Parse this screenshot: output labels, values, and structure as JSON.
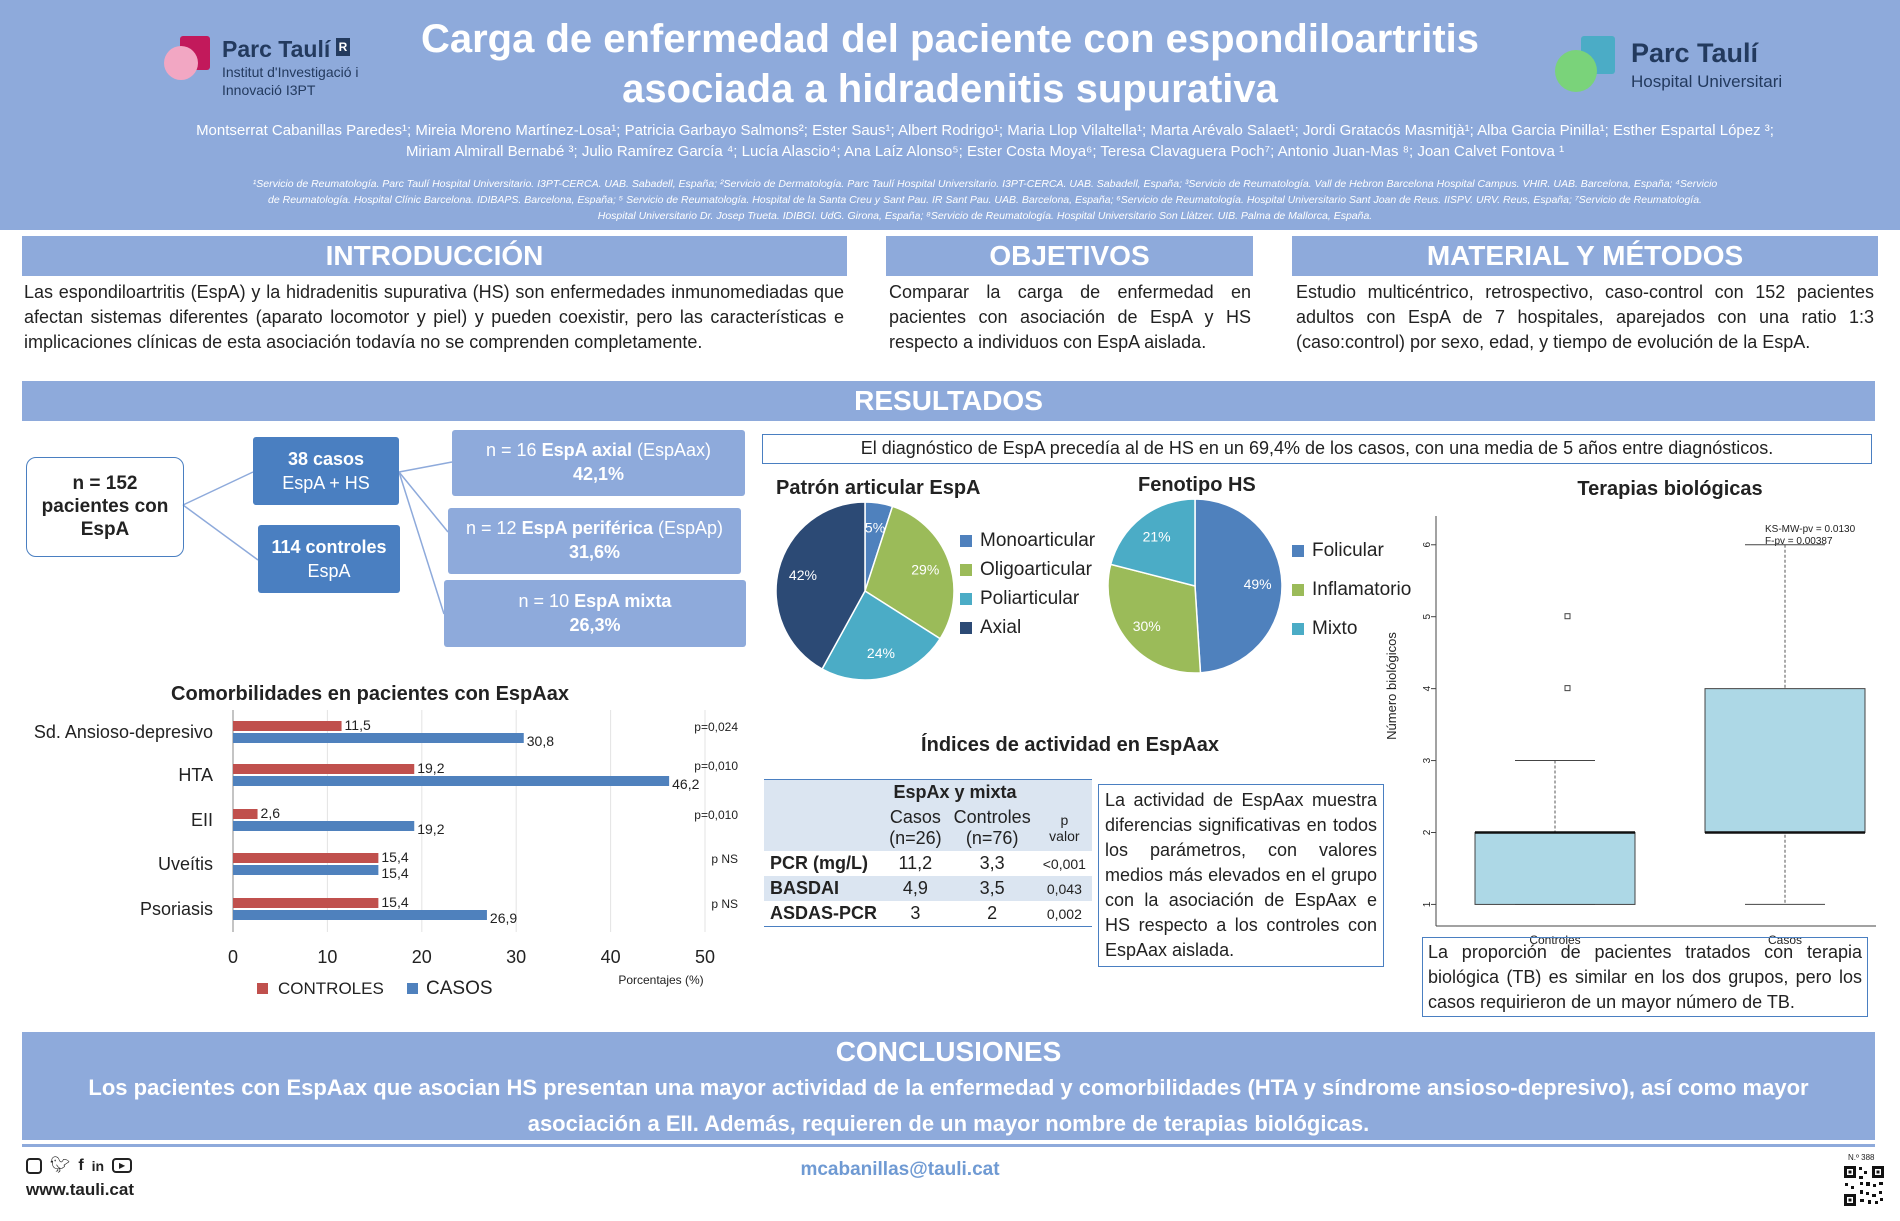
{
  "header": {
    "title_line1": "Carga de enfermedad del paciente con espondiloartritis",
    "title_line2": "asociada a hidradenitis supurativa",
    "authors_line1": "Montserrat Cabanillas Paredes¹; Mireia Moreno Martínez-Losa¹; Patricia Garbayo Salmons²; Ester Saus¹; Albert Rodrigo¹; Maria Llop Vilaltella¹; Marta Arévalo Salaet¹; Jordi Gratacós Masmitjà¹; Alba Garcia Pinilla¹; Esther Espartal López ³;",
    "authors_line2": "Miriam Almirall Bernabé ³; Julio Ramírez García ⁴; Lucía Alascio⁴; Ana Laíz Alonso⁵; Ester Costa Moya⁶; Teresa Clavaguera Poch⁷; Antonio Juan-Mas ⁸; Joan Calvet Fontova ¹",
    "affil_line1": "¹Servicio de Reumatología. Parc Taulí Hospital Universitario. I3PT-CERCA. UAB. Sabadell, España; ²Servicio de Dermatología. Parc Taulí Hospital Universitario. I3PT-CERCA. UAB. Sabadell, España; ³Servicio de Reumatología. Vall de Hebron Barcelona Hospital Campus. VHIR. UAB. Barcelona, España; ⁴Servicio",
    "affil_line2": "de Reumatología. Hospital Clínic Barcelona. IDIBAPS. Barcelona, España; ⁵ Servicio de Reumatología. Hospital de la Santa Creu y Sant Pau. IR Sant Pau. UAB. Barcelona, España; ⁶Servicio de Reumatología. Hospital Universitario Sant Joan de Reus. IISPV. URV. Reus, España; ⁷Servicio de Reumatología.",
    "affil_line3": "Hospital Universitario Dr. Josep Trueta. IDIBGI. UdG. Girona, España; ⁸Servicio de Reumatología. Hospital Universitario Son Llàtzer. UIB. Palma de Mallorca, España.",
    "logo_left": {
      "name": "Parc Taulí",
      "line1": "Institut d'Investigació i",
      "line2": "Innovació I3PT"
    },
    "logo_right": {
      "name": "Parc Taulí",
      "line1": "Hospital Universitari"
    }
  },
  "intro": {
    "heading": "INTRODUCCIÓN",
    "text": "Las espondiloartritis (EspA) y la hidradenitis supurativa (HS) son enfermedades inmunomediadas que afectan sistemas diferentes (aparato locomotor y piel) y pueden coexistir, pero las características e implicaciones clínicas de esta asociación todavía no se comprenden completamente."
  },
  "objetivos": {
    "heading": "OBJETIVOS",
    "text": "Comparar la carga de enfermedad en pacientes con asociación de EspA y HS respecto a individuos con EspA aislada."
  },
  "metodos": {
    "heading": "MATERIAL Y MÉTODOS",
    "text": "Estudio multicéntrico, retrospectivo, caso-control con 152 pacientes adultos con EspA de 7 hospitales, aparejados con una ratio 1:3 (caso:control) por sexo, edad, y tiempo de evolución de la EspA."
  },
  "resultados": {
    "heading": "RESULTADOS",
    "flow": {
      "total": [
        "n = 152",
        "pacientes con",
        "EspA"
      ],
      "casos": [
        "38 casos",
        "EspA + HS"
      ],
      "controles": [
        "114 controles",
        "EspA"
      ],
      "axial": {
        "pre": "n = 16 ",
        "bold": "EspA axial",
        "post": " (EspAax)",
        "pct": "42,1%"
      },
      "periferica": {
        "pre": "n = 12 ",
        "bold": "EspA periférica",
        "post": "  (EspAp)",
        "pct": "31,6%"
      },
      "mixta": {
        "pre": "n = 10 ",
        "bold": "EspA mixta",
        "post": "",
        "pct": "26,3%"
      }
    },
    "diag_note": "El diagnóstico de EspA precedía al de HS en un 69,4% de los casos, con una media de 5 años entre diagnósticos.",
    "activity_text": "La actividad de EspAax muestra diferencias significativas en todos los parámetros, con valores medios más elevados en el grupo con la asociación de EspAax e HS respecto a los controles con EspAax aislada.",
    "tb_text": "La proporción de pacientes tratados con terapia biológica (TB) es similar en los dos grupos, pero los casos requirieron de un mayor número de TB."
  },
  "activity_table": {
    "title": "Índices de actividad en EspAax",
    "group_header": "EspAx y mixta",
    "col_casos": [
      "Casos",
      "(n=26)"
    ],
    "col_controles": [
      "Controles",
      "(n=76)"
    ],
    "col_p": [
      "p",
      "valor"
    ],
    "rows": [
      {
        "label": "PCR (mg/L)",
        "casos": "11,2",
        "controles": "3,3",
        "p": "<0,001"
      },
      {
        "label": "BASDAI",
        "casos": "4,9",
        "controles": "3,5",
        "p": "0,043"
      },
      {
        "label": "ASDAS-PCR",
        "casos": "3",
        "controles": "2",
        "p": "0,002"
      }
    ]
  },
  "conclusiones": {
    "heading": "CONCLUSIONES",
    "line1": "Los pacientes con EspAax que asocian HS presentan una mayor actividad de la enfermedad y comorbilidades (HTA y síndrome ansioso-depresivo), así como mayor",
    "line2": "asociación a EII. Además, requieren de un mayor nombre de terapias biológicas."
  },
  "footer": {
    "website": "www.tauli.cat",
    "email": "mcabanillas@tauli.cat",
    "poster_no": "N.º 388"
  },
  "colors": {
    "header_bg": "#8eaadb",
    "box_blue": "#4a7fc1",
    "controles": "#c0504d",
    "casos": "#4f81bd",
    "pie_mono": "#4f81bd",
    "pie_oligo": "#9bbb59",
    "pie_poli": "#4bacc6",
    "pie_axial": "#2c4a75"
  },
  "chart_data": [
    {
      "type": "pie",
      "title": "Patrón articular EspA",
      "labels": [
        "Monoarticular",
        "Oligoarticular",
        "Poliarticular",
        "Axial"
      ],
      "values": [
        5,
        29,
        24,
        42
      ],
      "value_labels": [
        "5%",
        "29%",
        "24%",
        "42%"
      ],
      "legend": "right"
    },
    {
      "type": "pie",
      "title": "Fenotipo HS",
      "labels": [
        "Folicular",
        "Inflamatorio",
        "Mixto"
      ],
      "values": [
        49,
        30,
        21
      ],
      "value_labels": [
        "49%",
        "30%",
        "21%"
      ],
      "legend": "right"
    },
    {
      "type": "bar",
      "orientation": "horizontal",
      "title": "Comorbilidades en pacientes con EspAax",
      "categories": [
        "Sd. Ansioso-depresivo",
        "HTA",
        "EII",
        "Uveítis",
        "Psoriasis"
      ],
      "series": [
        {
          "name": "CONTROLES",
          "values": [
            11.5,
            19.2,
            2.6,
            15.4,
            15.4
          ],
          "labels": [
            "11,5",
            "19,2",
            "2,6",
            "15,4",
            "15,4"
          ]
        },
        {
          "name": "CASOS",
          "values": [
            30.8,
            46.2,
            19.2,
            15.4,
            26.9
          ],
          "labels": [
            "30,8",
            "46,2",
            "19,2",
            "15,4",
            "26,9"
          ]
        }
      ],
      "pvalues": [
        "p=0,024",
        "p=0,010",
        "p=0,010",
        "p NS",
        "p NS"
      ],
      "xlabel": "Porcentajes (%)",
      "xlim": [
        0,
        50
      ],
      "xticks": [
        "0",
        "10",
        "20",
        "30",
        "40",
        "50"
      ],
      "legend": "bottom"
    },
    {
      "type": "boxplot",
      "title": "Terapias biológicas",
      "ylabel": "Número biológicos",
      "categories": [
        "Controles",
        "Casos"
      ],
      "yticks": [
        "1",
        "2",
        "3",
        "4",
        "5",
        "6"
      ],
      "ylim": [
        0.7,
        6.4
      ],
      "boxes": [
        {
          "name": "Controles",
          "min": 1,
          "q1": 1,
          "median": 2,
          "q3": 2,
          "max": 3,
          "outliers": [
            4,
            5
          ]
        },
        {
          "name": "Casos",
          "min": 1,
          "q1": 2,
          "median": 2,
          "q3": 4,
          "max": 6,
          "outliers": []
        }
      ],
      "stats_line1": "KS-MW-pv = 0.0130",
      "stats_line2": "F-pv = 0.00387"
    }
  ]
}
